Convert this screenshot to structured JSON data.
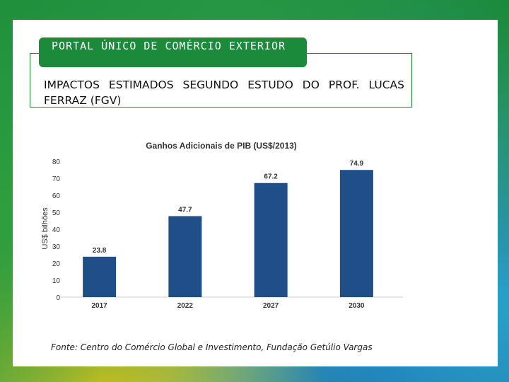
{
  "header": {
    "badge": "PORTAL ÚNICO DE COMÉRCIO EXTERIOR",
    "title": "IMPACTOS ESTIMADOS SEGUNDO ESTUDO DO PROF. LUCAS FERRAZ (FGV)"
  },
  "chart_data": {
    "type": "bar",
    "title": "Ganhos Adicionais de PIB  (US$/2013)",
    "xlabel": "",
    "ylabel": "US$ bilhões",
    "categories": [
      "2017",
      "2022",
      "2027",
      "2030"
    ],
    "values": [
      23.8,
      47.7,
      67.2,
      74.9
    ],
    "value_labels": [
      "23.8",
      "47.7",
      "67.2",
      "74.9"
    ],
    "ylim": [
      0,
      80
    ],
    "yticks": [
      0,
      10,
      20,
      30,
      40,
      50,
      60,
      70,
      80
    ],
    "bar_color": "#1f4e89"
  },
  "footer": {
    "source": "Fonte: Centro do Comércio Global e Investimento, Fundação Getúlio Vargas"
  }
}
